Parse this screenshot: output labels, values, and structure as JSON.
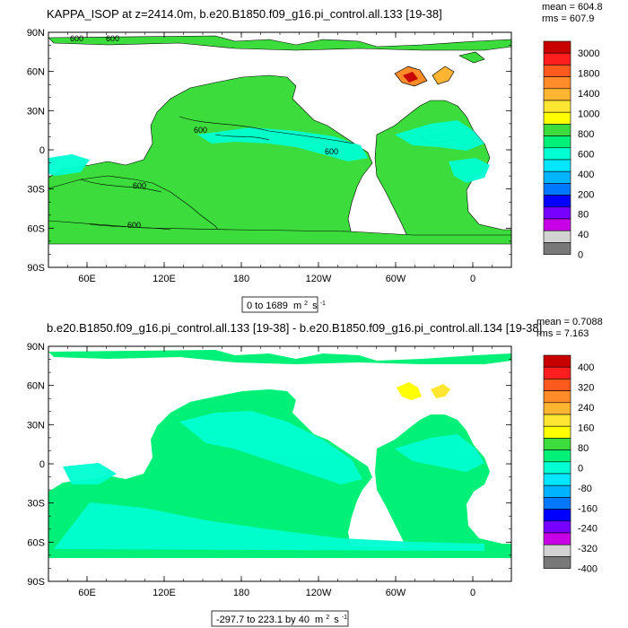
{
  "panels": [
    {
      "title": "KAPPA_ISOP at z=2414.0m, b.e20.B1850.f09_g16.pi_control.all.133 [19-38]",
      "stats_mean": "mean = 604.8",
      "stats_rms": "rms = 607.9",
      "range_text": "0 to 1689",
      "units_text": "m",
      "units_exp": "2",
      "units_tail": "s",
      "units_tail_exp": "-1",
      "lat_ticks": [
        "90N",
        "60N",
        "30N",
        "0",
        "30S",
        "60S",
        "90S"
      ],
      "lon_ticks": [
        "60E",
        "120E",
        "180",
        "120W",
        "60W",
        "0"
      ],
      "contour_labels": [
        "600",
        "600",
        "600",
        "600",
        "600",
        "600"
      ],
      "colorbar": {
        "labels": [
          "3000",
          "1800",
          "1400",
          "1000",
          "800",
          "600",
          "400",
          "200",
          "80",
          "40",
          "0"
        ],
        "colors": [
          "#c80000",
          "#ff1e1e",
          "#ff5a1e",
          "#ff8c28",
          "#ffb432",
          "#ffe632",
          "#ffff00",
          "#3cdc3c",
          "#00f078",
          "#00ffd2",
          "#00e6ff",
          "#00b4ff",
          "#0078ff",
          "#0000ff",
          "#7800ff",
          "#c800e6",
          "#d2d2d2",
          "#787878"
        ]
      }
    },
    {
      "title": "b.e20.B1850.f09_g16.pi_control.all.133 [19-38] - b.e20.B1850.f09_g16.pi_control.all.134 [19-38]",
      "stats_mean": "mean = 0.7088",
      "stats_rms": "rms = 7.163",
      "range_text": "-297.7 to 223.1 by 40",
      "units_text": "m",
      "units_exp": "2",
      "units_tail": "s",
      "units_tail_exp": "-1",
      "lat_ticks": [
        "90N",
        "60N",
        "30N",
        "0",
        "30S",
        "60S",
        "90S"
      ],
      "lon_ticks": [
        "60E",
        "120E",
        "180",
        "120W",
        "60W",
        "0"
      ],
      "colorbar": {
        "labels": [
          "400",
          "320",
          "240",
          "160",
          "80",
          "0",
          "-80",
          "-160",
          "-240",
          "-320",
          "-400"
        ],
        "colors": [
          "#c80000",
          "#ff1e1e",
          "#ff5a1e",
          "#ff8c28",
          "#ffb432",
          "#ffe632",
          "#ffff00",
          "#3cdc3c",
          "#00f078",
          "#00ffd2",
          "#00e6ff",
          "#00b4ff",
          "#0078ff",
          "#0000ff",
          "#7800ff",
          "#c800e6",
          "#d2d2d2",
          "#787878"
        ]
      }
    }
  ],
  "chart_data": [
    {
      "type": "heatmap",
      "title": "KAPPA_ISOP at z=2414.0m, b.e20.B1850.f09_g16.pi_control.all.133 [19-38]",
      "field": "KAPPA_ISOP",
      "depth": "z=2414.0m",
      "mean": 604.8,
      "rms": 607.9,
      "value_range": [
        0,
        1689
      ],
      "units": "m^2 s^-1",
      "colorbar_levels": [
        0,
        40,
        80,
        200,
        400,
        600,
        800,
        1000,
        1400,
        1800,
        3000
      ],
      "dominant_value": 600,
      "xlabel": "",
      "ylabel": "",
      "x_ticks": [
        "60E",
        "120E",
        "180",
        "120W",
        "60W",
        "0"
      ],
      "y_ticks": [
        "90N",
        "60N",
        "30N",
        "0",
        "30S",
        "60S",
        "90S"
      ]
    },
    {
      "type": "heatmap",
      "title": "b.e20.B1850.f09_g16.pi_control.all.133 [19-38] - b.e20.B1850.f09_g16.pi_control.all.134 [19-38]",
      "mean": 0.7088,
      "rms": 7.163,
      "value_range": [
        -297.7,
        223.1
      ],
      "contour_interval": 40,
      "units": "m^2 s^-1",
      "colorbar_levels": [
        -400,
        -320,
        -240,
        -160,
        -80,
        0,
        80,
        160,
        240,
        320,
        400
      ],
      "dominant_value": 0,
      "xlabel": "",
      "ylabel": "",
      "x_ticks": [
        "60E",
        "120E",
        "180",
        "120W",
        "60W",
        "0"
      ],
      "y_ticks": [
        "90N",
        "60N",
        "30N",
        "0",
        "30S",
        "60S",
        "90S"
      ]
    }
  ]
}
